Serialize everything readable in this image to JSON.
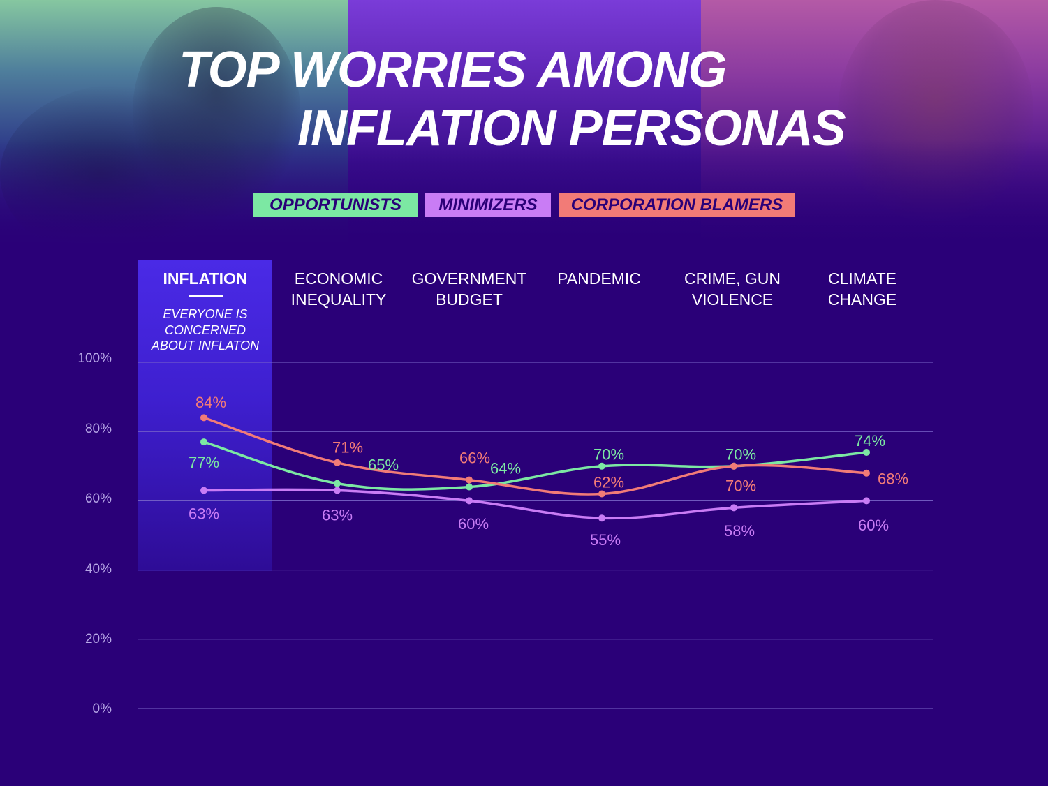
{
  "title_line1": "TOP WORRIES AMONG",
  "title_line2": "INFLATION PERSONAS",
  "legend": [
    {
      "label": "OPPORTUNISTS",
      "color": "#7ce8a3"
    },
    {
      "label": "MINIMIZERS",
      "color": "#c97cf5"
    },
    {
      "label": "CORPORATION BLAMERS",
      "color": "#f27b77"
    }
  ],
  "categories": [
    {
      "line1": "INFLATION",
      "line2": ""
    },
    {
      "line1": "ECONOMIC",
      "line2": "INEQUALITY"
    },
    {
      "line1": "GOVERNMENT",
      "line2": "BUDGET"
    },
    {
      "line1": "PANDEMIC",
      "line2": ""
    },
    {
      "line1": "CRIME, GUN",
      "line2": "VIOLENCE"
    },
    {
      "line1": "CLIMATE",
      "line2": "CHANGE"
    }
  ],
  "highlight_note": {
    "line1": "EVERYONE IS",
    "line2": "CONCERNED",
    "line3": "ABOUT INFLATON"
  },
  "chart_data": {
    "type": "line",
    "categories": [
      "INFLATION",
      "ECONOMIC INEQUALITY",
      "GOVERNMENT BUDGET",
      "PANDEMIC",
      "CRIME, GUN VIOLENCE",
      "CLIMATE CHANGE"
    ],
    "series": [
      {
        "name": "OPPORTUNISTS",
        "color": "#7ce8a3",
        "values": [
          77,
          65,
          64,
          70,
          70,
          74
        ]
      },
      {
        "name": "MINIMIZERS",
        "color": "#c97cf5",
        "values": [
          63,
          63,
          60,
          55,
          58,
          60
        ]
      },
      {
        "name": "CORPORATION BLAMERS",
        "color": "#f27b77",
        "values": [
          84,
          71,
          66,
          62,
          70,
          68
        ]
      }
    ],
    "ylim": [
      0,
      100
    ],
    "yticks": [
      "100%",
      "80%",
      "60%",
      "40%",
      "20%",
      "0%"
    ],
    "grid": true,
    "legend_position": "top-center"
  }
}
